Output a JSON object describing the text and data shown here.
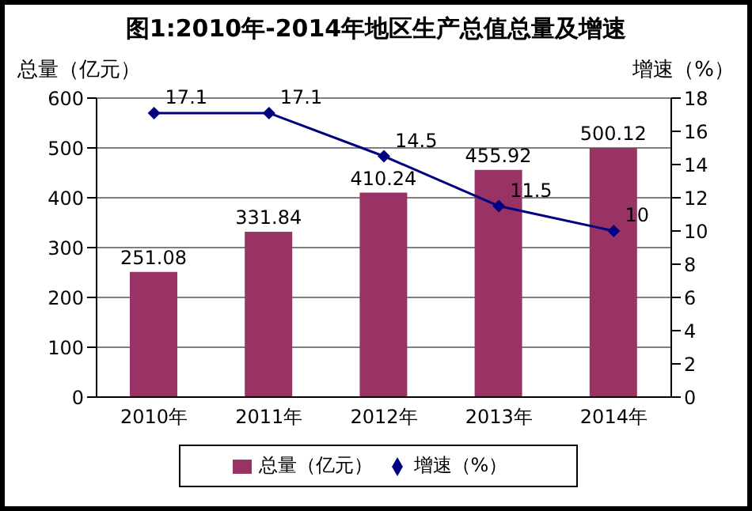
{
  "chart_data": {
    "type": "bar",
    "title": "图1:2010年-2014年地区生产总值总量及增速",
    "ylabel": "总量（亿元）",
    "y2label": "增速（%）",
    "categories": [
      "2010年",
      "2011年",
      "2012年",
      "2013年",
      "2014年"
    ],
    "series": [
      {
        "name": "总量（亿元）",
        "color": "#993366",
        "values": [
          251.08,
          331.84,
          410.24,
          455.92,
          500.12
        ]
      },
      {
        "name": "增速（%）",
        "type": "line",
        "axis": "y2",
        "color": "#000080",
        "marker": "diamond",
        "values": [
          17.1,
          17.1,
          14.5,
          11.5,
          10
        ]
      }
    ],
    "ylim": [
      0,
      600
    ],
    "yticks": [
      0,
      100,
      200,
      300,
      400,
      500,
      600
    ],
    "y2lim": [
      0,
      18
    ],
    "y2ticks": [
      0,
      2,
      4,
      6,
      8,
      10,
      12,
      14,
      16,
      18
    ],
    "grid": "y",
    "legend": "bottom",
    "data_labels": true
  }
}
